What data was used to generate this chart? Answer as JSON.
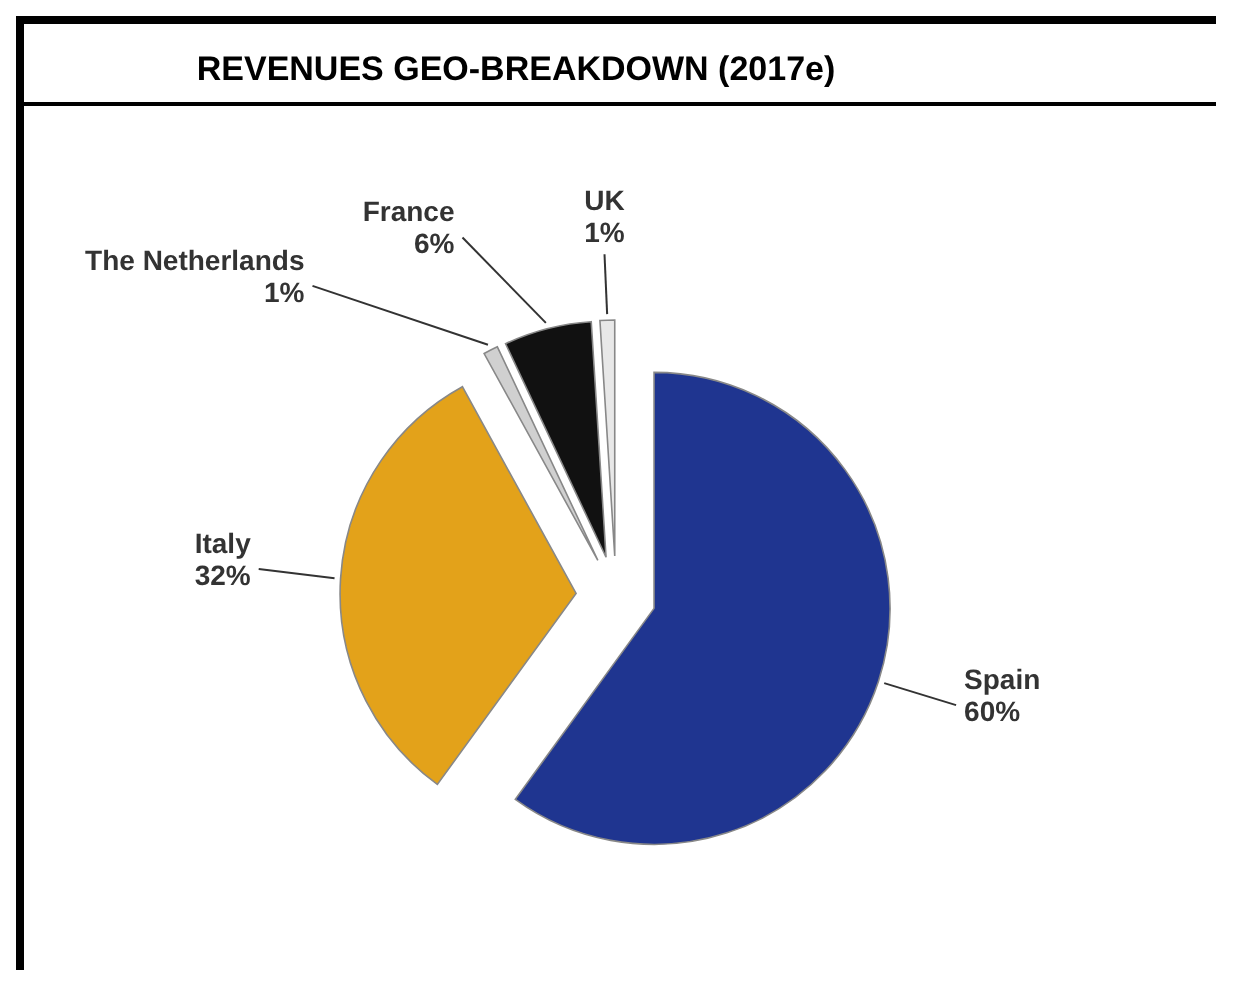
{
  "chart_data": {
    "type": "pie",
    "title": "REVENUES GEO-BREAKDOWN (2017e)",
    "categories": [
      "Spain",
      "Italy",
      "The Netherlands",
      "France",
      "UK"
    ],
    "values": [
      60,
      32,
      1,
      6,
      1
    ],
    "colors": [
      "#1f3590",
      "#e3a21a",
      "#d0d0d0",
      "#111111",
      "#e8e8e8"
    ],
    "value_labels": [
      "60%",
      "32%",
      "1%",
      "6%",
      "1%"
    ]
  }
}
